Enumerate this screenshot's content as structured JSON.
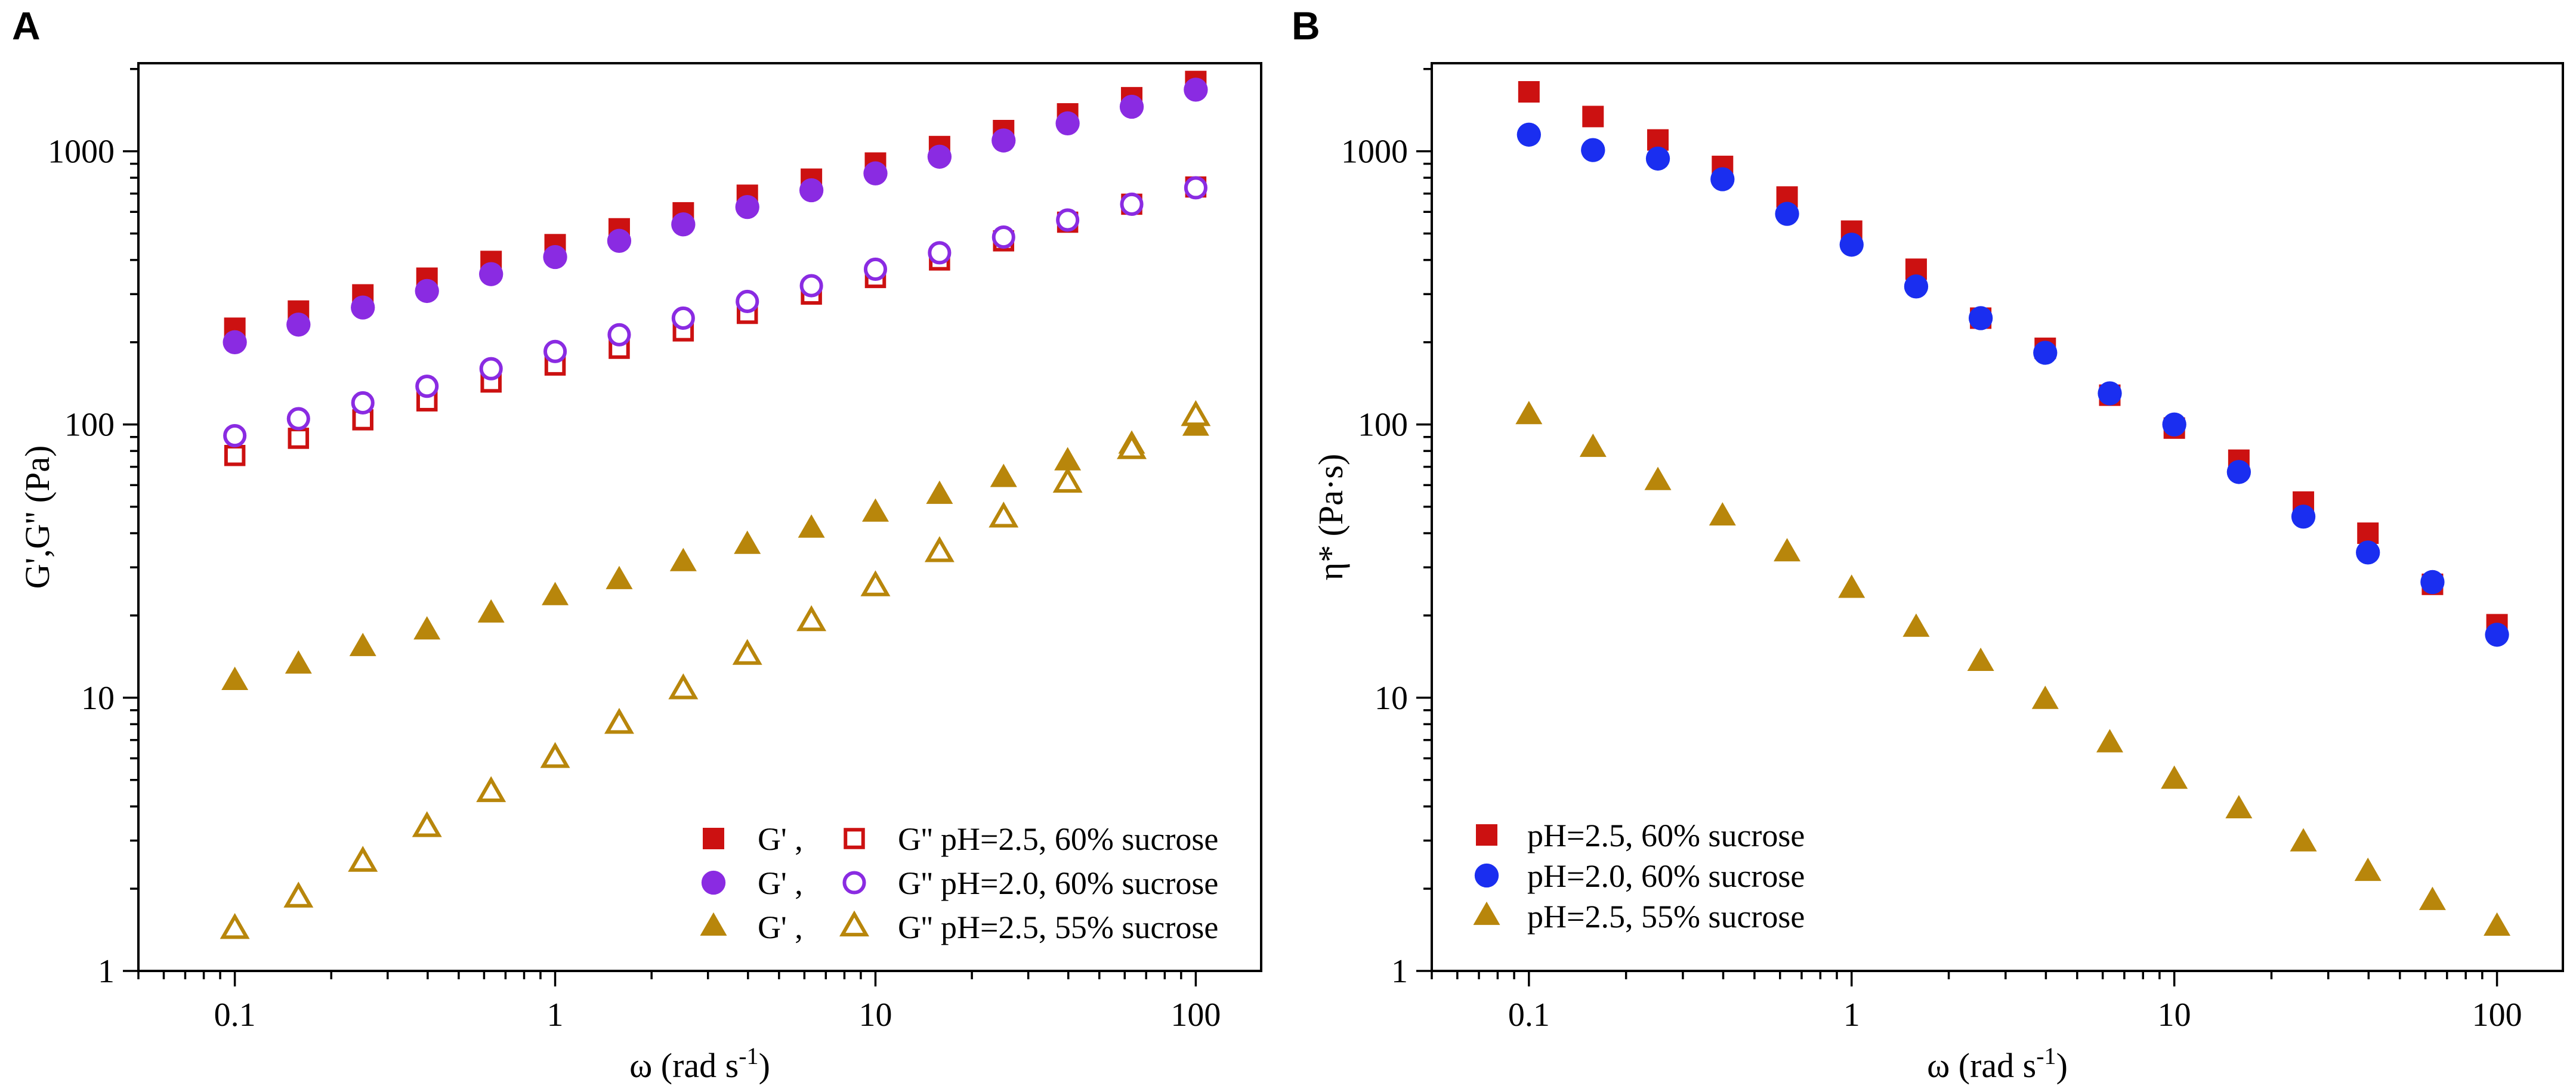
{
  "chart_data": [
    {
      "panel": "A",
      "type": "scatter",
      "xscale": "log",
      "yscale": "log",
      "xlim": [
        0.05,
        160
      ],
      "ylim": [
        1,
        2100
      ],
      "xticks": [
        {
          "v": 0.1,
          "label": "0.1"
        },
        {
          "v": 1,
          "label": "1"
        },
        {
          "v": 10,
          "label": "10"
        },
        {
          "v": 100,
          "label": "100"
        }
      ],
      "yticks": [
        {
          "v": 1,
          "label": "1"
        },
        {
          "v": 10,
          "label": "10"
        },
        {
          "v": 100,
          "label": "100"
        },
        {
          "v": 1000,
          "label": "1000"
        }
      ],
      "xlabel": {
        "main": "ω (rad s",
        "sup": "-1",
        "close": ")"
      },
      "ylabel": "G',G'' (Pa)",
      "x": [
        0.1,
        0.158,
        0.251,
        0.398,
        0.631,
        1,
        1.585,
        2.512,
        3.981,
        6.31,
        10,
        15.85,
        25.12,
        39.81,
        63.1,
        100
      ],
      "series": [
        {
          "name": "G' pH=2.5, 60% sucrose",
          "marker": "square",
          "filled": true,
          "color": "#cc1111",
          "values": [
            225,
            260,
            298,
            343,
            395,
            455,
            520,
            595,
            690,
            790,
            905,
            1040,
            1190,
            1370,
            1570,
            1800
          ]
        },
        {
          "name": "G'' pH=2.5, 60% sucrose",
          "marker": "square",
          "filled": false,
          "color": "#cc1111",
          "values": [
            77,
            89,
            104,
            122,
            143,
            165,
            190,
            220,
            255,
            300,
            345,
            400,
            470,
            550,
            640,
            740
          ]
        },
        {
          "name": "G' pH=2.0, 60% sucrose",
          "marker": "circle",
          "filled": true,
          "color": "#8a2be2",
          "values": [
            200,
            232,
            268,
            308,
            355,
            410,
            470,
            540,
            625,
            720,
            830,
            955,
            1095,
            1265,
            1455,
            1680
          ]
        },
        {
          "name": "G'' pH=2.0, 60% sucrose",
          "marker": "circle",
          "filled": false,
          "color": "#8a2be2",
          "values": [
            91,
            105,
            120,
            138,
            160,
            185,
            213,
            245,
            282,
            322,
            370,
            425,
            485,
            560,
            640,
            735
          ]
        },
        {
          "name": "G' pH=2.5, 55% sucrose",
          "marker": "triangle",
          "filled": true,
          "color": "#b8860b",
          "values": [
            11.5,
            13.2,
            15.3,
            17.6,
            20.3,
            23.5,
            26.9,
            31.3,
            36.2,
            41.5,
            47.5,
            55.2,
            63.6,
            73.2,
            84.3,
            98
          ]
        },
        {
          "name": "G'' pH=2.5, 55% sucrose",
          "marker": "triangle",
          "filled": false,
          "color": "#b8860b",
          "values": [
            1.42,
            1.85,
            2.5,
            3.35,
            4.5,
            6.0,
            8.0,
            10.7,
            14.3,
            19.0,
            25.5,
            34,
            45.5,
            61,
            81,
            107
          ]
        }
      ],
      "legend": {
        "placement": "lower-right",
        "rows": [
          {
            "a": "G' ,",
            "b": "G'' pH=2.5, 60% sucrose",
            "marker": "square",
            "color": "#cc1111"
          },
          {
            "a": "G' ,",
            "b": "G'' pH=2.0, 60% sucrose",
            "marker": "circle",
            "color": "#8a2be2"
          },
          {
            "a": "G' ,",
            "b": "G'' pH=2.5, 55% sucrose",
            "marker": "triangle",
            "color": "#b8860b"
          }
        ]
      }
    },
    {
      "panel": "B",
      "type": "scatter",
      "xscale": "log",
      "yscale": "log",
      "xlim": [
        0.05,
        160
      ],
      "ylim": [
        1,
        2100
      ],
      "xticks": [
        {
          "v": 0.1,
          "label": "0.1"
        },
        {
          "v": 1,
          "label": "1"
        },
        {
          "v": 10,
          "label": "10"
        },
        {
          "v": 100,
          "label": "100"
        }
      ],
      "yticks": [
        {
          "v": 1,
          "label": "1"
        },
        {
          "v": 10,
          "label": "10"
        },
        {
          "v": 100,
          "label": "100"
        },
        {
          "v": 1000,
          "label": "1000"
        }
      ],
      "xlabel": {
        "main": "ω (rad s",
        "sup": "-1",
        "close": ")"
      },
      "ylabel": "η* (Pa·s)",
      "x": [
        0.1,
        0.158,
        0.251,
        0.398,
        0.631,
        1,
        1.585,
        2.512,
        3.981,
        6.31,
        10,
        15.85,
        25.12,
        39.81,
        63.1,
        100
      ],
      "series": [
        {
          "name": "pH=2.5, 60% sucrose",
          "marker": "square",
          "filled": true,
          "color": "#cc1111",
          "values": [
            1650,
            1340,
            1100,
            880,
            680,
            510,
            370,
            245,
            190,
            128,
            97,
            74,
            52,
            40,
            26,
            18.5
          ]
        },
        {
          "name": "pH=2.0, 60% sucrose",
          "marker": "circle",
          "filled": true,
          "color": "#1a2ef0",
          "values": [
            1150,
            1010,
            940,
            790,
            590,
            455,
            320,
            245,
            183,
            130,
            100,
            67,
            46,
            34,
            26.5,
            17
          ]
        },
        {
          "name": "pH=2.5, 55% sucrose",
          "marker": "triangle",
          "filled": true,
          "color": "#b8860b",
          "values": [
            108,
            82,
            62,
            46,
            34,
            25,
            18,
            13.5,
            9.8,
            6.8,
            5.0,
            3.9,
            2.95,
            2.3,
            1.8,
            1.45
          ]
        }
      ],
      "legend": {
        "placement": "lower-left",
        "rows": [
          {
            "label": "pH=2.5, 60% sucrose",
            "marker": "square",
            "color": "#cc1111"
          },
          {
            "label": "pH=2.0, 60% sucrose",
            "marker": "circle",
            "color": "#1a2ef0"
          },
          {
            "label": "pH=2.5, 55% sucrose",
            "marker": "triangle",
            "color": "#b8860b"
          }
        ]
      }
    }
  ]
}
